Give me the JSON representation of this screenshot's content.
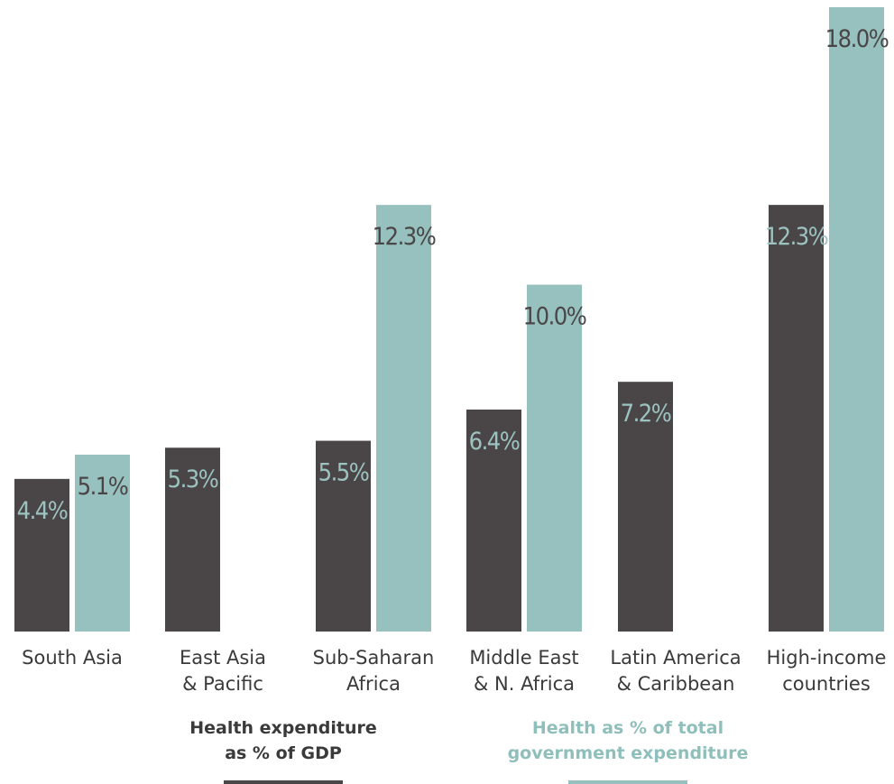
{
  "chart_data": {
    "type": "bar",
    "title": "",
    "xlabel": "",
    "ylabel": "",
    "ylim": [
      0,
      18
    ],
    "grid": false,
    "legend_position": "bottom",
    "categories": [
      [
        "South Asia"
      ],
      [
        "East Asia",
        "& Pacific"
      ],
      [
        "Sub-Saharan",
        "Africa"
      ],
      [
        "Middle East",
        "& N. Africa"
      ],
      [
        "Latin America",
        "& Caribbean"
      ],
      [
        "High-income",
        "countries"
      ]
    ],
    "series": [
      {
        "name": "Health expenditure as % of GDP",
        "legend_lines": [
          "Health expenditure",
          "as % of GDP"
        ],
        "color": "#4a4648",
        "label_color": "#9dc3c0",
        "values": [
          4.4,
          5.3,
          5.5,
          6.4,
          7.2,
          12.3
        ],
        "labels": [
          "4.4%",
          "5.3%",
          "5.5%",
          "6.4%",
          "7.2%",
          "12.3%"
        ]
      },
      {
        "name": "Health as % of total government expenditure",
        "legend_lines": [
          "Health as % of total",
          "government expenditure"
        ],
        "color": "#97c1be",
        "label_color": "#4a4648",
        "values": [
          5.1,
          null,
          12.3,
          10.0,
          null,
          18.0
        ],
        "labels": [
          "5.1%",
          null,
          "12.3%",
          "10.0%",
          null,
          "18.0%"
        ]
      }
    ]
  }
}
